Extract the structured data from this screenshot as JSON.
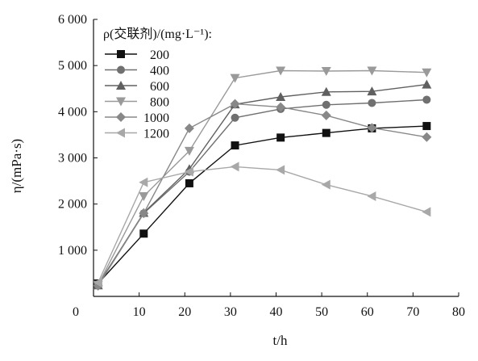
{
  "chart_data": {
    "type": "line",
    "xlabel": "t/h",
    "ylabel": "η/(mPa·s)",
    "xlim": [
      0,
      80
    ],
    "ylim": [
      0,
      6000
    ],
    "x_ticks": [
      0,
      10,
      20,
      30,
      40,
      50,
      60,
      70,
      80
    ],
    "x_tick_labels": [
      "0",
      "10",
      "20",
      "30",
      "40",
      "50",
      "60",
      "70",
      "80"
    ],
    "y_ticks": [
      1000,
      2000,
      3000,
      4000,
      5000,
      6000
    ],
    "y_tick_labels": [
      "1 000",
      "2 000",
      "3 000",
      "4 000",
      "5 000",
      "6 000"
    ],
    "grid": false,
    "legend": {
      "title": "ρ(交联剂)/(mg·L⁻¹):",
      "position": "top-left"
    },
    "x": [
      1,
      11,
      21,
      31,
      41,
      51,
      61,
      73
    ],
    "series": [
      {
        "name": "200",
        "marker": "square",
        "color": "#111111",
        "values": [
          280,
          1360,
          2450,
          3270,
          3440,
          3540,
          3640,
          3690
        ]
      },
      {
        "name": "400",
        "marker": "circle",
        "color": "#707070",
        "values": [
          260,
          1800,
          2700,
          3870,
          4060,
          4150,
          4190,
          4260
        ]
      },
      {
        "name": "600",
        "marker": "triangle-up",
        "color": "#606060",
        "values": [
          240,
          1810,
          2760,
          4160,
          4320,
          4430,
          4440,
          4590
        ]
      },
      {
        "name": "800",
        "marker": "triangle-down",
        "color": "#9a9a9a",
        "values": [
          250,
          2170,
          3150,
          4730,
          4890,
          4880,
          4890,
          4850
        ]
      },
      {
        "name": "1000",
        "marker": "diamond",
        "color": "#888888",
        "values": [
          230,
          1800,
          3640,
          4170,
          4100,
          3920,
          3650,
          3450
        ]
      },
      {
        "name": "1200",
        "marker": "triangle-left",
        "color": "#a8a8a8",
        "values": [
          300,
          2470,
          2700,
          2810,
          2740,
          2420,
          2170,
          1830
        ]
      }
    ]
  }
}
